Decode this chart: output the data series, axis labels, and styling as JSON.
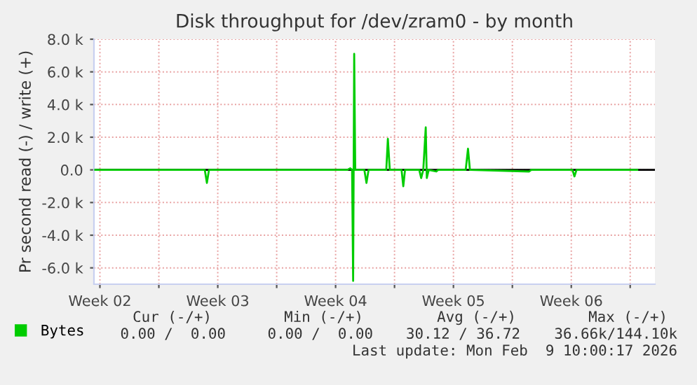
{
  "chart_data": {
    "type": "line",
    "title": "Disk throughput for /dev/zram0 - by month",
    "ylabel": "Pr second read (-) / write (+)",
    "series": [
      {
        "name": "Bytes",
        "color": "#00cc00",
        "x": [
          "2026-01-08T05:15",
          "2026-01-14T17:30",
          "2026-01-14T20:30",
          "2026-01-14T23:30",
          "2026-01-23T04:45",
          "2026-01-23T08:45",
          "2026-01-23T11:30",
          "2026-01-23T13:00",
          "2026-01-23T14:30",
          "2026-01-23T16:00",
          "2026-01-24T05:00",
          "2026-01-24T08:00",
          "2026-01-24T11:00",
          "2026-01-25T12:15",
          "2026-01-25T14:30",
          "2026-01-25T17:15",
          "2026-01-26T10:00",
          "2026-01-26T12:30",
          "2026-01-26T15:00",
          "2026-01-27T11:15",
          "2026-01-27T14:00",
          "2026-01-27T17:00",
          "2026-01-27T20:30",
          "2026-01-27T22:00",
          "2026-01-28T00:45",
          "2026-01-28T11:30",
          "2026-01-28T14:15",
          "2026-01-30T05:30",
          "2026-01-30T08:45",
          "2026-01-30T11:30",
          "2026-02-03T00:00",
          "2026-02-03T03:00",
          "2026-02-05T13:45",
          "2026-02-05T16:30",
          "2026-02-05T19:30",
          "2026-02-09T10:00"
        ],
        "values": [
          0,
          0,
          -800,
          0,
          0,
          100,
          0,
          -6800,
          7100,
          0,
          0,
          -800,
          0,
          0,
          1900,
          0,
          0,
          -1000,
          0,
          0,
          -500,
          0,
          2600,
          -500,
          0,
          -100,
          0,
          0,
          1300,
          0,
          -100,
          0,
          0,
          -400,
          0,
          0
        ]
      }
    ],
    "xlim": [
      "2026-01-08T03:30",
      "2026-02-10T11:15"
    ],
    "xticks": [
      {
        "value": "2026-01-08T12:00",
        "label": "Week 02"
      },
      {
        "value": "2026-01-12",
        "label": null
      },
      {
        "value": "2026-01-15T12:00",
        "label": "Week 03"
      },
      {
        "value": "2026-01-19",
        "label": null
      },
      {
        "value": "2026-01-22T12:00",
        "label": "Week 04"
      },
      {
        "value": "2026-01-26",
        "label": null
      },
      {
        "value": "2026-01-29T12:00",
        "label": "Week 05"
      },
      {
        "value": "2026-02-02",
        "label": null
      },
      {
        "value": "2026-02-05T12:00",
        "label": "Week 06"
      },
      {
        "value": "2026-02-09",
        "label": null
      }
    ],
    "ylim": [
      -7000,
      8000
    ],
    "yticks": [
      {
        "value": -6000,
        "label": "-6.0 k"
      },
      {
        "value": -4000,
        "label": "-4.0 k"
      },
      {
        "value": -2000,
        "label": "-2.0 k"
      },
      {
        "value": 0,
        "label": "0.0"
      },
      {
        "value": 2000,
        "label": "2.0 k"
      },
      {
        "value": 4000,
        "label": "4.0 k"
      },
      {
        "value": 6000,
        "label": "6.0 k"
      },
      {
        "value": 8000,
        "label": "8.0 k"
      }
    ],
    "ref_lines": [
      {
        "axis": "y",
        "value": 0,
        "color": "#000000"
      }
    ],
    "grid": true,
    "legend": "bottom left",
    "marker": "none",
    "line_style": "solid",
    "annotations": [
      "Cur (-/+)",
      "Min (-/+)",
      "Avg (-/+)",
      "Max (-/+)",
      "0.00 /  0.00",
      "0.00 /  0.00",
      "30.12 / 36.72",
      "36.66k/144.10k",
      "Last update: Mon Feb  9 10:00:17 2026"
    ]
  }
}
